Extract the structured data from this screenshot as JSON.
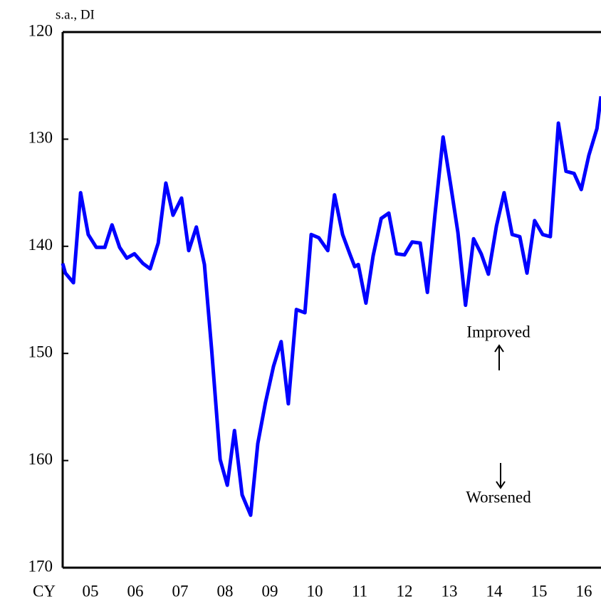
{
  "chart_data": {
    "type": "line",
    "y_label": "s.a., DI",
    "x_label": "CY",
    "annotations": [
      "Improved",
      "Worsened"
    ],
    "y_inverted": true,
    "ylim": [
      120,
      170
    ],
    "yticks": [
      120,
      130,
      140,
      150,
      160,
      170
    ],
    "xlim": [
      2004.88,
      2016.88
    ],
    "xticks": [
      {
        "value": 2005.5,
        "label": "05"
      },
      {
        "value": 2006.5,
        "label": "06"
      },
      {
        "value": 2007.5,
        "label": "07"
      },
      {
        "value": 2008.5,
        "label": "08"
      },
      {
        "value": 2009.5,
        "label": "09"
      },
      {
        "value": 2010.5,
        "label": "10"
      },
      {
        "value": 2011.5,
        "label": "11"
      },
      {
        "value": 2012.5,
        "label": "12"
      },
      {
        "value": 2013.5,
        "label": "13"
      },
      {
        "value": 2014.5,
        "label": "14"
      },
      {
        "value": 2015.5,
        "label": "15"
      },
      {
        "value": 2016.5,
        "label": "16"
      }
    ],
    "x": [
      2004.88,
      2004.94,
      2005.12,
      2005.28,
      2005.45,
      2005.63,
      2005.82,
      2005.98,
      2006.15,
      2006.31,
      2006.48,
      2006.67,
      2006.83,
      2007.01,
      2007.18,
      2007.34,
      2007.53,
      2007.69,
      2007.86,
      2008.04,
      2008.2,
      2008.39,
      2008.55,
      2008.71,
      2008.88,
      2009.07,
      2009.23,
      2009.4,
      2009.58,
      2009.75,
      2009.91,
      2010.09,
      2010.28,
      2010.42,
      2010.59,
      2010.79,
      2010.94,
      2011.12,
      2011.28,
      2011.39,
      2011.47,
      2011.64,
      2011.8,
      2011.98,
      2012.15,
      2012.32,
      2012.5,
      2012.67,
      2012.85,
      2013.01,
      2013.18,
      2013.36,
      2013.53,
      2013.69,
      2013.86,
      2014.04,
      2014.21,
      2014.37,
      2014.55,
      2014.72,
      2014.9,
      2015.07,
      2015.23,
      2015.4,
      2015.58,
      2015.75,
      2015.93,
      2016.1,
      2016.28,
      2016.44,
      2016.61,
      2016.79,
      2016.88
    ],
    "series": [
      {
        "color": "#0000ff",
        "values": [
          141.6,
          142.5,
          143.4,
          135.0,
          138.9,
          140.1,
          140.1,
          138.0,
          140.1,
          141.1,
          140.7,
          141.6,
          142.1,
          139.7,
          134.1,
          137.1,
          135.5,
          140.4,
          138.2,
          141.7,
          149.6,
          159.9,
          162.3,
          157.2,
          163.2,
          165.1,
          158.4,
          154.6,
          151.2,
          148.9,
          154.7,
          145.9,
          146.2,
          138.9,
          139.2,
          140.4,
          135.2,
          138.9,
          140.7,
          141.9,
          141.7,
          145.3,
          140.9,
          137.4,
          136.9,
          140.7,
          140.8,
          139.6,
          139.7,
          144.3,
          137.0,
          129.8,
          134.3,
          138.7,
          145.5,
          139.3,
          140.7,
          142.6,
          138.1,
          135.0,
          138.9,
          139.1,
          142.5,
          137.6,
          138.9,
          139.1,
          128.5,
          133.0,
          133.2,
          134.7,
          131.5,
          129.0,
          126.0
        ]
      }
    ]
  }
}
